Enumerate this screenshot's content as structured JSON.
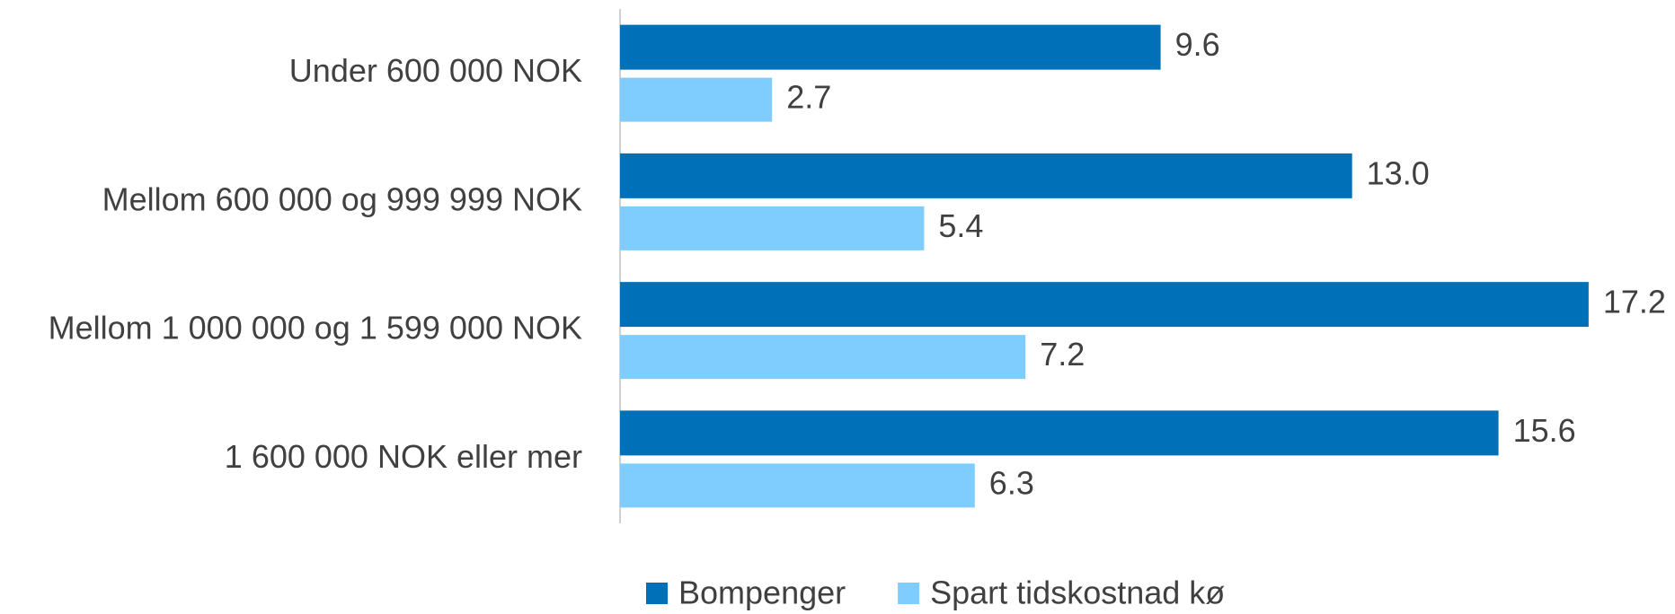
{
  "chart_data": {
    "type": "bar",
    "orientation": "horizontal",
    "categories": [
      "Under 600 000 NOK",
      "Mellom 600 000 og 999 999 NOK",
      "Mellom 1 000 000 og 1 599 000 NOK",
      "1 600 000 NOK eller mer"
    ],
    "series": [
      {
        "name": "Bompenger",
        "color": "#0070b8",
        "values": [
          9.6,
          13.0,
          17.2,
          15.6
        ],
        "value_labels": [
          "9.6",
          "13.0",
          "17.2",
          "15.6"
        ]
      },
      {
        "name": "Spart tidskostnad kø",
        "color": "#7fcdff",
        "values": [
          2.7,
          5.4,
          7.2,
          6.3
        ],
        "value_labels": [
          "2.7",
          "5.4",
          "7.2",
          "6.3"
        ]
      }
    ],
    "xlim": [
      0,
      18
    ],
    "legend": "bottom"
  }
}
